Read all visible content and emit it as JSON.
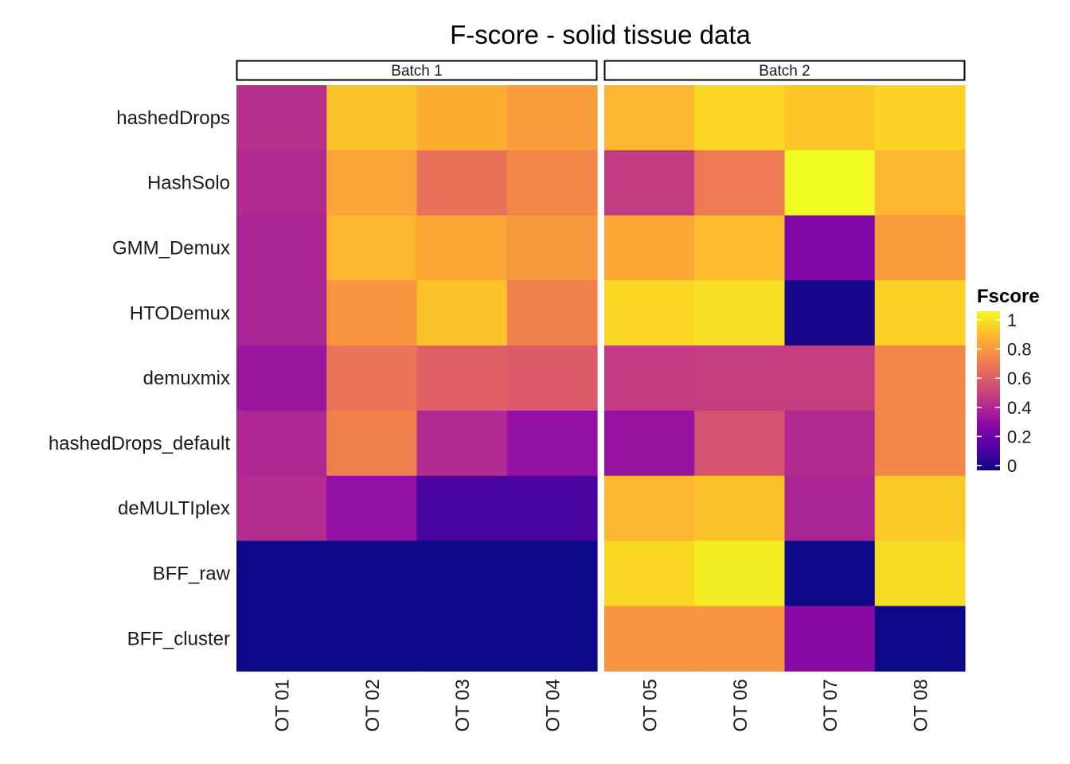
{
  "chart_data": {
    "type": "heatmap",
    "title": "F-score - solid tissue data",
    "xlabel": "",
    "ylabel": "",
    "rows": [
      "hashedDrops",
      "HashSolo",
      "GMM_Demux",
      "HTODemux",
      "demuxmix",
      "hashedDrops_default",
      "deMULTIplex",
      "BFF_raw",
      "BFF_cluster"
    ],
    "panels": [
      {
        "name": "Batch 1",
        "columns": [
          "OT 01",
          "OT 02",
          "OT 03",
          "OT 04"
        ],
        "values": [
          [
            0.42,
            0.87,
            0.82,
            0.77
          ],
          [
            0.4,
            0.79,
            0.64,
            0.71
          ],
          [
            0.38,
            0.84,
            0.8,
            0.76
          ],
          [
            0.38,
            0.75,
            0.87,
            0.69
          ],
          [
            0.33,
            0.65,
            0.59,
            0.57
          ],
          [
            0.39,
            0.69,
            0.4,
            0.31
          ],
          [
            0.41,
            0.31,
            0.12,
            0.12
          ],
          [
            0.0,
            0.0,
            0.0,
            0.0
          ],
          [
            0.0,
            0.0,
            0.0,
            0.0
          ]
        ]
      },
      {
        "name": "Batch 2",
        "columns": [
          "OT 05",
          "OT 06",
          "OT 07",
          "OT 08"
        ],
        "values": [
          [
            0.84,
            0.92,
            0.88,
            0.91
          ],
          [
            0.46,
            0.67,
            1.0,
            0.84
          ],
          [
            0.8,
            0.85,
            0.26,
            0.77
          ],
          [
            0.92,
            0.94,
            0.02,
            0.91
          ],
          [
            0.46,
            0.47,
            0.47,
            0.71
          ],
          [
            0.32,
            0.54,
            0.4,
            0.71
          ],
          [
            0.84,
            0.87,
            0.38,
            0.89
          ],
          [
            0.92,
            0.97,
            0.0,
            0.93
          ],
          [
            0.75,
            0.75,
            0.28,
            0.0
          ]
        ]
      }
    ],
    "legend": {
      "title": "Fscore",
      "ticks": [
        0,
        0.2,
        0.4,
        0.6,
        0.8,
        1
      ],
      "tick_labels": [
        "0",
        "0.2",
        "0.4",
        "0.6",
        "0.8",
        "1"
      ],
      "range": [
        0,
        1
      ],
      "placement": "right"
    },
    "colormap": "plasma",
    "colormap_stops": [
      "#0d0887",
      "#41049d",
      "#6a00a8",
      "#8f0da4",
      "#b12a90",
      "#cc4778",
      "#e16462",
      "#f2844b",
      "#fca636",
      "#fcce25",
      "#f0f921"
    ],
    "grid": false
  }
}
